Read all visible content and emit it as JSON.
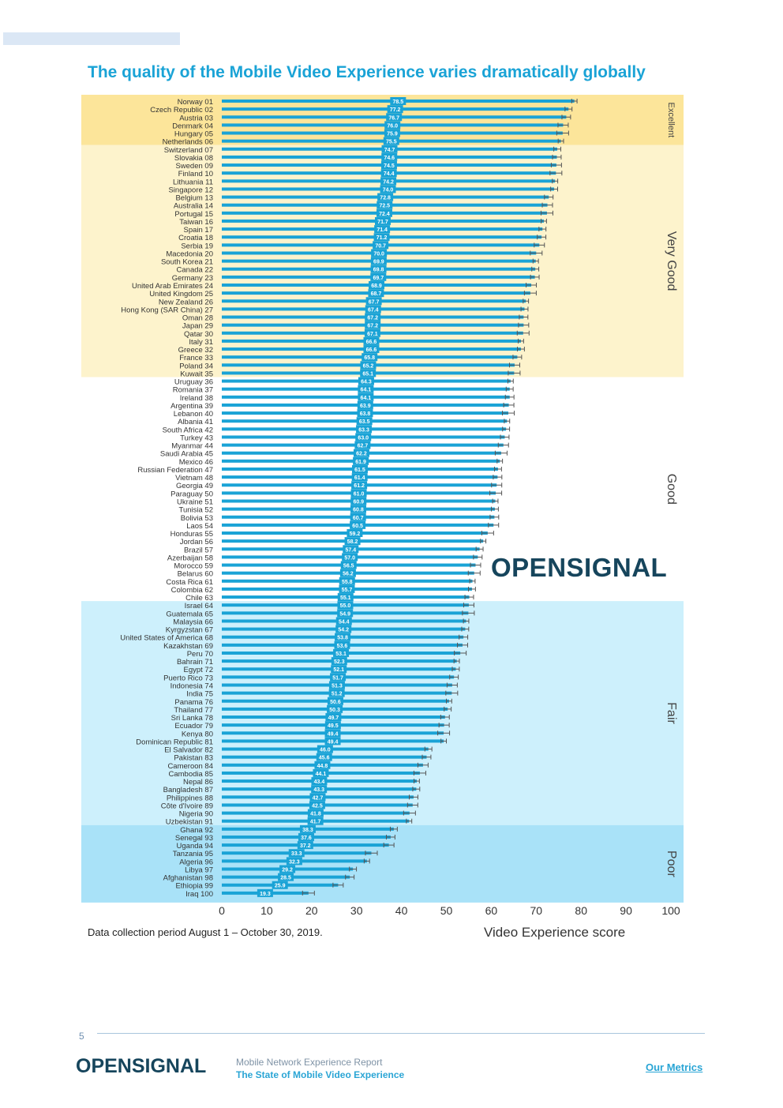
{
  "header": {
    "title": "The quality of the Mobile Video Experience varies dramatically globally"
  },
  "logos": {
    "middle": "OPENSIGNAL",
    "footer": "OPENSIGNAL"
  },
  "note": "Data collection period August 1 – October 30, 2019.",
  "footer": {
    "page_number": "5",
    "report_title": "Mobile Network Experience Report",
    "report_subtitle": "The State of Mobile Video Experience",
    "link": "Our Metrics"
  },
  "colors": {
    "bar": "#1aa3d6",
    "excellent": "#fce59a",
    "very_good": "#fdf3cc",
    "good": "#ffffff",
    "fair": "#cdf0fc",
    "poor": "#a9e2f8",
    "errorbar": "#555555",
    "title": "#1aa3d6",
    "logo": "#16455c"
  },
  "chart_data": {
    "type": "bar",
    "orientation": "horizontal",
    "title": "The quality of the Mobile Video Experience varies dramatically globally",
    "xlabel": "Video Experience score",
    "ylabel": "",
    "xlim": [
      0,
      100
    ],
    "x_ticks": [
      0,
      10,
      20,
      30,
      40,
      50,
      60,
      70,
      80,
      90,
      100
    ],
    "categories": [
      "Norway 01",
      "Czech Republic 02",
      "Austria 03",
      "Denmark 04",
      "Hungary 05",
      "Netherlands 06",
      "Switzerland 07",
      "Slovakia 08",
      "Sweden 09",
      "Finland 10",
      "Lithuania 11",
      "Singapore 12",
      "Belgium 13",
      "Australia 14",
      "Portugal 15",
      "Taiwan 16",
      "Spain 17",
      "Croatia 18",
      "Serbia 19",
      "Macedonia 20",
      "South Korea 21",
      "Canada 22",
      "Germany 23",
      "United Arab Emirates 24",
      "United Kingdom 25",
      "New Zealand 26",
      "Hong Kong (SAR China) 27",
      "Oman 28",
      "Japan 29",
      "Qatar 30",
      "Italy 31",
      "Greece 32",
      "France 33",
      "Poland 34",
      "Kuwait 35",
      "Uruguay 36",
      "Romania 37",
      "Ireland 38",
      "Argentina 39",
      "Lebanon 40",
      "Albania 41",
      "South Africa 42",
      "Turkey 43",
      "Myanmar 44",
      "Saudi Arabia 45",
      "Mexico 46",
      "Russian Federation 47",
      "Vietnam 48",
      "Georgia 49",
      "Paraguay 50",
      "Ukraine 51",
      "Tunisia 52",
      "Bolivia 53",
      "Laos 54",
      "Honduras 55",
      "Jordan 56",
      "Brazil 57",
      "Azerbaijan 58",
      "Morocco 59",
      "Belarus 60",
      "Costa Rica 61",
      "Colombia 62",
      "Chile 63",
      "Israel 64",
      "Guatemala 65",
      "Malaysia 66",
      "Kyrgyzstan 67",
      "United States of America 68",
      "Kazakhstan 69",
      "Peru 70",
      "Bahrain 71",
      "Egypt 72",
      "Puerto Rico 73",
      "Indonesia 74",
      "India 75",
      "Panama 76",
      "Thailand 77",
      "Sri Lanka 78",
      "Ecuador 79",
      "Kenya 80",
      "Dominican Republic 81",
      "El Salvador 82",
      "Pakistan 83",
      "Cameroon 84",
      "Cambodia 85",
      "Nepal 86",
      "Bangladesh 87",
      "Philippines 88",
      "Côte d'Ivoire 89",
      "Nigeria 90",
      "Uzbekistan 91",
      "Ghana 92",
      "Senegal 93",
      "Uganda 94",
      "Tanzania 95",
      "Algeria 96",
      "Libya 97",
      "Afghanistan 98",
      "Ethiopia 99",
      "Iraq 100"
    ],
    "values": [
      78.5,
      77.2,
      76.7,
      76.0,
      75.9,
      75.5,
      74.7,
      74.6,
      74.5,
      74.4,
      74.2,
      74.0,
      72.8,
      72.5,
      72.4,
      71.7,
      71.4,
      71.2,
      70.7,
      70.0,
      69.9,
      69.8,
      69.7,
      68.9,
      68.7,
      67.7,
      67.4,
      67.2,
      67.2,
      67.1,
      66.6,
      66.6,
      65.8,
      65.2,
      65.1,
      64.3,
      64.1,
      64.1,
      63.9,
      63.8,
      63.5,
      63.3,
      63.0,
      62.7,
      62.2,
      61.9,
      61.5,
      61.4,
      61.2,
      61.0,
      60.9,
      60.8,
      60.7,
      60.5,
      59.2,
      58.2,
      57.4,
      57.0,
      56.5,
      56.2,
      55.8,
      55.7,
      55.1,
      55.0,
      54.9,
      54.4,
      54.2,
      53.8,
      53.6,
      53.1,
      52.3,
      52.1,
      51.7,
      51.3,
      51.2,
      50.6,
      50.3,
      49.7,
      49.5,
      49.4,
      49.4,
      46.0,
      45.6,
      44.8,
      44.1,
      43.4,
      43.3,
      42.7,
      42.5,
      41.8,
      41.7,
      38.3,
      37.6,
      37.2,
      33.3,
      32.3,
      29.2,
      28.5,
      25.9,
      19.3
    ],
    "bands": [
      {
        "label": "Excellent",
        "from_rank": 1,
        "to_rank": 6
      },
      {
        "label": "Very Good",
        "from_rank": 7,
        "to_rank": 35
      },
      {
        "label": "Good",
        "from_rank": 36,
        "to_rank": 63
      },
      {
        "label": "Fair",
        "from_rank": 64,
        "to_rank": 91
      },
      {
        "label": "Poor",
        "from_rank": 92,
        "to_rank": 100
      }
    ],
    "error_bars": true,
    "legend": "none",
    "grid": false
  }
}
